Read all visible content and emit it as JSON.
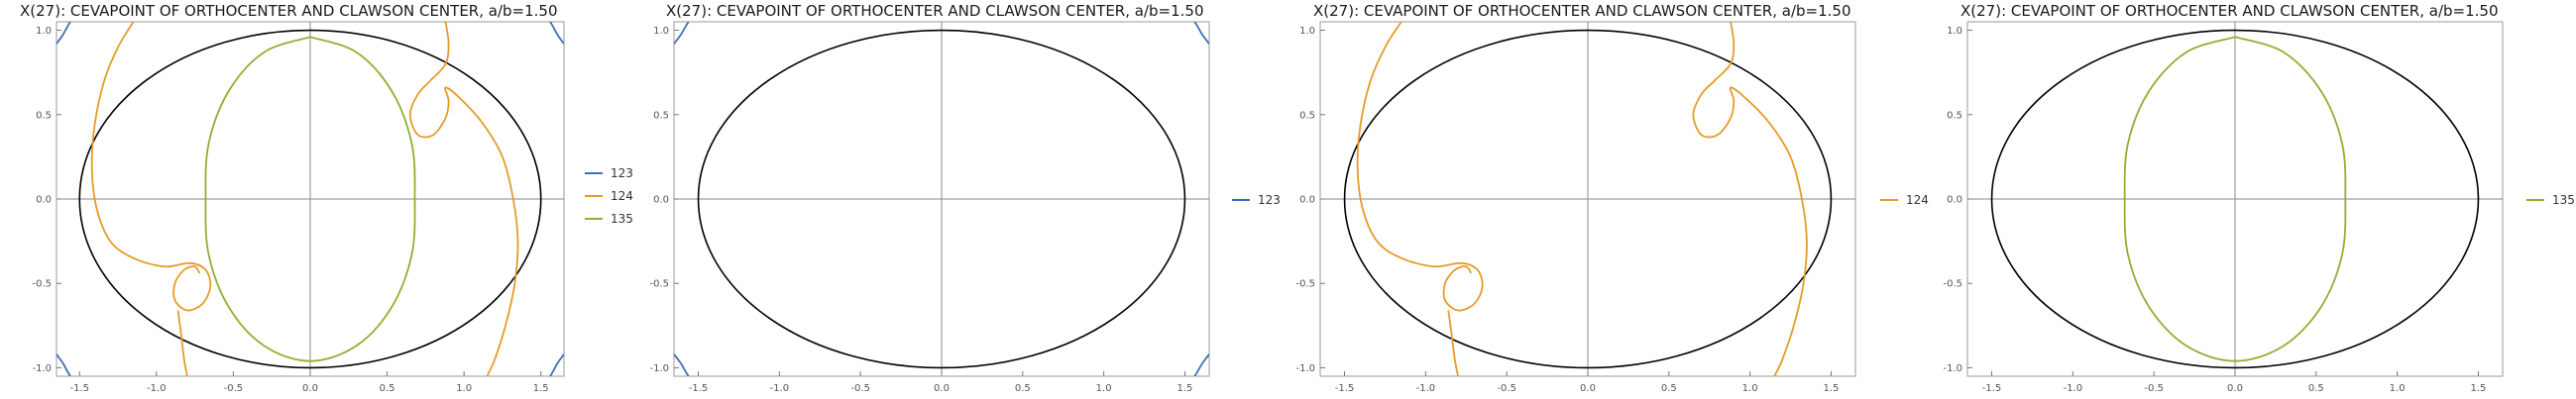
{
  "colors": {
    "ellipse": "#000000",
    "123": "#3f6fb5",
    "124": "#e69b28",
    "135": "#8fb032",
    "axis": "#888888"
  },
  "chart_data": [
    {
      "type": "line",
      "title": "X(27): CEVAPOINT OF ORTHOCENTER AND CLAWSON CENTER, a/b=1.50",
      "xlim": [
        -1.65,
        1.65
      ],
      "ylim": [
        -1.05,
        1.05
      ],
      "x_ticks": [
        "-1.5",
        "-1.0",
        "-0.5",
        "0.0",
        "0.5",
        "1.0",
        "1.5"
      ],
      "y_ticks": [
        "1.0",
        "0.5",
        "0.0",
        "-0.5",
        "-1.0"
      ],
      "reference_ellipse": {
        "a": 1.5,
        "b": 1.0
      },
      "legend": [
        "123",
        "124",
        "135"
      ],
      "legend_position": "right",
      "series": [
        "123",
        "124",
        "135"
      ]
    },
    {
      "type": "line",
      "title": "X(27): CEVAPOINT OF ORTHOCENTER AND CLAWSON CENTER, a/b=1.50",
      "xlim": [
        -1.65,
        1.65
      ],
      "ylim": [
        -1.05,
        1.05
      ],
      "x_ticks": [
        "-1.5",
        "-1.0",
        "-0.5",
        "0.0",
        "0.5",
        "1.0",
        "1.5"
      ],
      "y_ticks": [
        "1.0",
        "0.5",
        "0.0",
        "-0.5",
        "-1.0"
      ],
      "reference_ellipse": {
        "a": 1.5,
        "b": 1.0
      },
      "legend": [
        "123"
      ],
      "legend_position": "right",
      "series": [
        "123"
      ]
    },
    {
      "type": "line",
      "title": "X(27): CEVAPOINT OF ORTHOCENTER AND CLAWSON CENTER, a/b=1.50",
      "xlim": [
        -1.65,
        1.65
      ],
      "ylim": [
        -1.05,
        1.05
      ],
      "x_ticks": [
        "-1.5",
        "-1.0",
        "-0.5",
        "0.0",
        "0.5",
        "1.0",
        "1.5"
      ],
      "y_ticks": [
        "1.0",
        "0.5",
        "0.0",
        "-0.5",
        "-1.0"
      ],
      "reference_ellipse": {
        "a": 1.5,
        "b": 1.0
      },
      "legend": [
        "124"
      ],
      "legend_position": "right",
      "series": [
        "124"
      ]
    },
    {
      "type": "line",
      "title": "X(27): CEVAPOINT OF ORTHOCENTER AND CLAWSON CENTER, a/b=1.50",
      "xlim": [
        -1.65,
        1.65
      ],
      "ylim": [
        -1.05,
        1.05
      ],
      "x_ticks": [
        "-1.5",
        "-1.0",
        "-0.5",
        "0.0",
        "0.5",
        "1.0",
        "1.5"
      ],
      "y_ticks": [
        "1.0",
        "0.5",
        "0.0",
        "-0.5",
        "-1.0"
      ],
      "reference_ellipse": {
        "a": 1.5,
        "b": 1.0
      },
      "legend": [
        "135"
      ],
      "legend_position": "right",
      "series": [
        "135"
      ]
    }
  ],
  "curves": {
    "123": [
      [
        [
          -1.65,
          0.92
        ],
        [
          -1.61,
          0.97
        ],
        [
          -1.58,
          1.02
        ],
        [
          -1.56,
          1.05
        ]
      ],
      [
        [
          1.56,
          1.05
        ],
        [
          1.58,
          1.02
        ],
        [
          1.61,
          0.97
        ],
        [
          1.65,
          0.92
        ]
      ],
      [
        [
          -1.65,
          -0.92
        ],
        [
          -1.61,
          -0.97
        ],
        [
          -1.58,
          -1.02
        ],
        [
          -1.56,
          -1.05
        ]
      ],
      [
        [
          1.56,
          -1.05
        ],
        [
          1.58,
          -1.02
        ],
        [
          1.61,
          -0.97
        ],
        [
          1.65,
          -0.92
        ]
      ]
    ],
    "124": [
      [
        [
          -1.15,
          1.05
        ],
        [
          -1.25,
          0.9
        ],
        [
          -1.34,
          0.7
        ],
        [
          -1.4,
          0.45
        ],
        [
          -1.42,
          0.2
        ],
        [
          -1.39,
          -0.05
        ],
        [
          -1.3,
          -0.25
        ],
        [
          -1.15,
          -0.35
        ],
        [
          -0.95,
          -0.4
        ],
        [
          -0.78,
          -0.38
        ],
        [
          -0.68,
          -0.42
        ],
        [
          -0.65,
          -0.52
        ],
        [
          -0.7,
          -0.62
        ],
        [
          -0.8,
          -0.66
        ],
        [
          -0.88,
          -0.6
        ],
        [
          -0.88,
          -0.5
        ],
        [
          -0.82,
          -0.42
        ],
        [
          -0.75,
          -0.4
        ],
        [
          -0.72,
          -0.44
        ]
      ],
      [
        [
          -0.86,
          -0.66
        ],
        [
          -0.84,
          -0.8
        ],
        [
          -0.82,
          -0.95
        ],
        [
          -0.8,
          -1.05
        ]
      ],
      [
        [
          0.88,
          1.05
        ],
        [
          0.9,
          0.92
        ],
        [
          0.88,
          0.8
        ],
        [
          0.78,
          0.7
        ],
        [
          0.7,
          0.62
        ],
        [
          0.65,
          0.5
        ],
        [
          0.7,
          0.38
        ],
        [
          0.8,
          0.38
        ],
        [
          0.88,
          0.48
        ],
        [
          0.9,
          0.58
        ],
        [
          0.88,
          0.66
        ],
        [
          0.97,
          0.6
        ],
        [
          1.12,
          0.45
        ],
        [
          1.25,
          0.25
        ],
        [
          1.32,
          0.0
        ],
        [
          1.35,
          -0.25
        ],
        [
          1.33,
          -0.5
        ],
        [
          1.27,
          -0.75
        ],
        [
          1.2,
          -0.95
        ],
        [
          1.15,
          -1.05
        ]
      ]
    ],
    "135": [
      [
        [
          0.0,
          0.96
        ],
        [
          0.3,
          0.87
        ],
        [
          0.53,
          0.64
        ],
        [
          0.66,
          0.33
        ],
        [
          0.68,
          0.0
        ],
        [
          0.66,
          -0.33
        ],
        [
          0.53,
          -0.64
        ],
        [
          0.3,
          -0.87
        ],
        [
          0.0,
          -0.96
        ],
        [
          -0.3,
          -0.87
        ],
        [
          -0.53,
          -0.64
        ],
        [
          -0.66,
          -0.33
        ],
        [
          -0.68,
          0.0
        ],
        [
          -0.66,
          0.33
        ],
        [
          -0.53,
          0.64
        ],
        [
          -0.3,
          0.87
        ],
        [
          0.0,
          0.96
        ]
      ]
    ]
  }
}
